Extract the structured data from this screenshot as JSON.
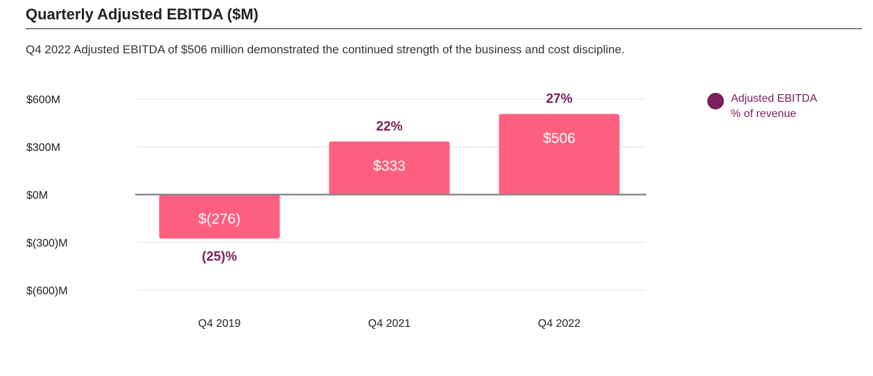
{
  "header": {
    "title": "Quarterly Adjusted EBITDA ($M)",
    "subtitle": "Q4 2022 Adjusted EBITDA of $506 million demonstrated the continued strength of the business and cost discipline."
  },
  "legend": {
    "line1": "Adjusted EBITDA",
    "line2": "% of revenue"
  },
  "colors": {
    "bar": "#ff5f7e",
    "accent": "#7a1f5c",
    "grid": "#dddddd",
    "zero_line": "#888888",
    "text": "#222222"
  },
  "chart_data": {
    "type": "bar",
    "categories": [
      "Q4 2019",
      "Q4 2021",
      "Q4 2022"
    ],
    "values": [
      -276,
      333,
      506
    ],
    "value_labels": [
      "$(276)",
      "$333",
      "$506"
    ],
    "margin_labels": [
      "(25)%",
      "22%",
      "27%"
    ],
    "margins_pct": [
      -25,
      22,
      27
    ],
    "yticks": [
      600,
      300,
      0,
      -300,
      -600
    ],
    "ytick_labels": [
      "$600M",
      "$300M",
      "$0M",
      "$(300)M",
      "$(600)M"
    ],
    "ylim": [
      -600,
      600
    ],
    "grid": true,
    "legend_position": "top-right"
  }
}
